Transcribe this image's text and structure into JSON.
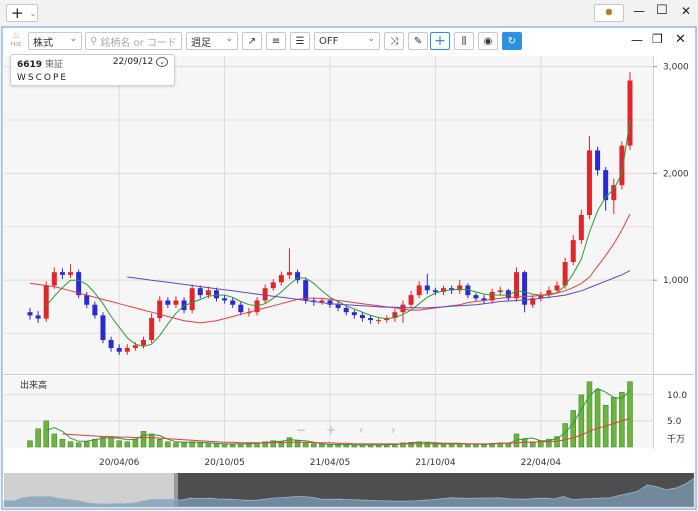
{
  "app": {
    "new_button": "+"
  },
  "toolbar": {
    "hot": "Hot",
    "market_type": "株式",
    "search_placeholder": "銘柄名 or コード",
    "period": "週足",
    "overlay": "OFF"
  },
  "info": {
    "code": "6619",
    "exchange": "東証",
    "date": "22/09/12",
    "name": "WSCOPE"
  },
  "chart_data": {
    "type": "candlestick",
    "categories": [
      null,
      null,
      null,
      null,
      null,
      null,
      null,
      null,
      null,
      null,
      null,
      "20/04/06",
      null,
      null,
      null,
      null,
      null,
      null,
      null,
      null,
      null,
      null,
      null,
      null,
      "20/10/05",
      null,
      null,
      null,
      null,
      null,
      null,
      null,
      null,
      null,
      null,
      null,
      null,
      "21/04/05",
      null,
      null,
      null,
      null,
      null,
      null,
      null,
      null,
      null,
      null,
      null,
      null,
      "21/10/04",
      null,
      null,
      null,
      null,
      null,
      null,
      null,
      null,
      null,
      null,
      null,
      null,
      "22/04/04",
      null,
      null,
      null,
      null,
      null,
      null,
      null,
      null,
      null,
      null,
      null
    ],
    "open": [
      700,
      670,
      640,
      950,
      1075,
      1050,
      1075,
      860,
      770,
      670,
      440,
      365,
      330,
      365,
      390,
      440,
      645,
      810,
      770,
      810,
      720,
      925,
      860,
      905,
      830,
      810,
      770,
      700,
      700,
      810,
      925,
      980,
      1047,
      1075,
      1000,
      810,
      795,
      810,
      770,
      740,
      700,
      673,
      645,
      626,
      626,
      645,
      700,
      770,
      860,
      950,
      905,
      890,
      925,
      905,
      950,
      860,
      830,
      810,
      890,
      905,
      830,
      1075,
      770,
      830,
      860,
      905,
      950,
      1170,
      1375,
      1610,
      2215,
      2030,
      1750,
      1890,
      2260
    ],
    "high": [
      740,
      710,
      990,
      1120,
      1110,
      1150,
      1100,
      890,
      800,
      700,
      470,
      400,
      400,
      420,
      470,
      690,
      850,
      840,
      850,
      840,
      960,
      950,
      940,
      930,
      860,
      840,
      800,
      740,
      840,
      960,
      1010,
      1080,
      1300,
      1100,
      1020,
      840,
      830,
      830,
      800,
      760,
      720,
      700,
      670,
      650,
      670,
      730,
      810,
      900,
      990,
      1060,
      930,
      950,
      950,
      1000,
      970,
      880,
      860,
      920,
      940,
      920,
      1120,
      1090,
      860,
      890,
      940,
      990,
      1210,
      1420,
      1660,
      2350,
      2250,
      2060,
      1950,
      2300,
      2950
    ],
    "low": [
      630,
      600,
      610,
      920,
      1010,
      1020,
      830,
      740,
      640,
      410,
      330,
      300,
      300,
      340,
      360,
      410,
      610,
      740,
      740,
      690,
      690,
      830,
      830,
      800,
      780,
      740,
      670,
      660,
      670,
      780,
      900,
      950,
      1010,
      970,
      780,
      760,
      770,
      740,
      710,
      670,
      640,
      610,
      590,
      590,
      600,
      610,
      600,
      740,
      830,
      870,
      860,
      860,
      870,
      870,
      830,
      800,
      780,
      780,
      860,
      800,
      800,
      700,
      740,
      800,
      830,
      880,
      920,
      1140,
      1340,
      1570,
      1980,
      1650,
      1620,
      1850,
      2220
    ],
    "close": [
      670,
      640,
      950,
      1075,
      1050,
      1075,
      860,
      770,
      670,
      440,
      365,
      330,
      365,
      390,
      440,
      645,
      810,
      770,
      810,
      720,
      925,
      860,
      905,
      830,
      810,
      770,
      700,
      700,
      810,
      925,
      980,
      1047,
      1075,
      1000,
      810,
      795,
      810,
      770,
      740,
      700,
      673,
      645,
      626,
      626,
      645,
      700,
      770,
      860,
      950,
      905,
      890,
      925,
      905,
      950,
      860,
      830,
      810,
      890,
      905,
      830,
      1075,
      770,
      830,
      860,
      905,
      950,
      1170,
      1375,
      1610,
      2215,
      2030,
      1750,
      1890,
      2260,
      2870
    ],
    "up_color": "#e0262a",
    "down_color": "#2a2ad0",
    "ma": [
      {
        "color": "#2e9a3a",
        "values": [
          null,
          null,
          760,
          850,
          930,
          1000,
          1000,
          960,
          880,
          780,
          660,
          560,
          460,
          400,
          380,
          400,
          480,
          590,
          690,
          760,
          790,
          820,
          850,
          860,
          860,
          840,
          800,
          770,
          760,
          780,
          830,
          890,
          960,
          1020,
          1020,
          970,
          900,
          840,
          800,
          760,
          730,
          700,
          670,
          650,
          640,
          650,
          680,
          720,
          780,
          840,
          880,
          900,
          910,
          915,
          910,
          890,
          870,
          860,
          860,
          860,
          900,
          890,
          870,
          860,
          860,
          880,
          950,
          1060,
          1200,
          1450,
          1650,
          1780,
          1850,
          2000,
          2500
        ]
      },
      {
        "color": "#e04040",
        "values": [
          970,
          960,
          950,
          940,
          920,
          900,
          880,
          860,
          840,
          820,
          800,
          780,
          760,
          740,
          720,
          700,
          680,
          660,
          640,
          620,
          610,
          600,
          610,
          620,
          640,
          660,
          680,
          700,
          720,
          740,
          760,
          780,
          800,
          820,
          830,
          830,
          830,
          820,
          810,
          800,
          790,
          780,
          770,
          760,
          750,
          740,
          730,
          720,
          720,
          730,
          740,
          750,
          760,
          770,
          790,
          800,
          810,
          820,
          830,
          840,
          840,
          850,
          850,
          860,
          870,
          880,
          900,
          930,
          970,
          1030,
          1130,
          1230,
          1340,
          1470,
          1620
        ]
      },
      {
        "color": "#5a4ac8",
        "values": [
          null,
          null,
          null,
          null,
          null,
          null,
          null,
          null,
          null,
          null,
          null,
          null,
          1030,
          1020,
          1010,
          1000,
          990,
          980,
          970,
          960,
          950,
          940,
          930,
          920,
          910,
          900,
          890,
          880,
          870,
          860,
          850,
          840,
          830,
          820,
          810,
          800,
          790,
          780,
          775,
          770,
          765,
          760,
          755,
          750,
          748,
          746,
          744,
          742,
          740,
          740,
          745,
          750,
          755,
          760,
          765,
          770,
          780,
          790,
          800,
          805,
          810,
          815,
          820,
          830,
          840,
          850,
          860,
          880,
          900,
          930,
          960,
          990,
          1020,
          1050,
          1090
        ]
      }
    ],
    "ylim": [
      140,
      3090
    ],
    "yticks": [
      {
        "value": 3000,
        "label": "3,000"
      },
      {
        "value": 2000,
        "label": "2,000"
      },
      {
        "value": 1000,
        "label": "1,000"
      }
    ],
    "yminor": [
      500,
      1500,
      2500
    ],
    "grid": true,
    "volume": {
      "label": "出来高",
      "unit": "千万",
      "color": "#6db33f",
      "values": [
        1.2,
        3.5,
        5.0,
        2.5,
        1.5,
        1.0,
        0.8,
        1.0,
        1.5,
        2.0,
        1.8,
        1.2,
        1.0,
        1.5,
        3.0,
        2.5,
        1.5,
        1.0,
        0.8,
        0.8,
        1.0,
        0.8,
        0.8,
        0.6,
        0.6,
        0.5,
        0.6,
        0.7,
        0.8,
        1.0,
        1.2,
        1.0,
        1.8,
        1.2,
        0.8,
        0.6,
        0.5,
        0.5,
        0.5,
        0.4,
        0.4,
        0.4,
        0.4,
        0.4,
        0.5,
        0.6,
        0.8,
        0.9,
        1.0,
        0.8,
        0.7,
        0.7,
        0.6,
        0.7,
        0.6,
        0.5,
        0.5,
        0.7,
        0.8,
        0.6,
        2.5,
        1.5,
        1.0,
        1.2,
        1.5,
        2.0,
        4.5,
        7.0,
        10.0,
        12.5,
        11.0,
        8.0,
        9.5,
        10.5,
        12.5
      ],
      "ma": [
        {
          "color": "#2e9a3a",
          "values": [
            null,
            null,
            3.2,
            3.7,
            3.0,
            1.7,
            1.1,
            1.1,
            1.4,
            1.7,
            1.8,
            1.7,
            1.4,
            1.5,
            2.2,
            2.4,
            2.2,
            1.5,
            1.0,
            0.9,
            0.9,
            0.9,
            0.8,
            0.7,
            0.6,
            0.6,
            0.6,
            0.6,
            0.7,
            0.8,
            1.0,
            1.1,
            1.4,
            1.3,
            1.2,
            0.9,
            0.6,
            0.5,
            0.5,
            0.5,
            0.4,
            0.4,
            0.4,
            0.4,
            0.4,
            0.5,
            0.6,
            0.8,
            0.9,
            0.9,
            0.8,
            0.7,
            0.7,
            0.7,
            0.6,
            0.6,
            0.5,
            0.6,
            0.7,
            0.7,
            1.3,
            1.6,
            1.7,
            1.2,
            1.2,
            1.6,
            2.7,
            4.5,
            7.2,
            9.8,
            11.2,
            10.5,
            9.5,
            9.3,
            10.8
          ]
        },
        {
          "color": "#e04040",
          "values": [
            null,
            null,
            null,
            null,
            2.5,
            2.4,
            2.3,
            2.2,
            2.1,
            2.0,
            2.0,
            1.9,
            1.9,
            1.8,
            1.8,
            1.8,
            1.7,
            1.6,
            1.5,
            1.4,
            1.3,
            1.2,
            1.1,
            1.0,
            0.9,
            0.9,
            0.8,
            0.8,
            0.8,
            0.8,
            0.8,
            0.8,
            0.9,
            0.9,
            0.9,
            0.8,
            0.8,
            0.8,
            0.7,
            0.7,
            0.6,
            0.6,
            0.6,
            0.6,
            0.6,
            0.6,
            0.6,
            0.6,
            0.6,
            0.6,
            0.6,
            0.6,
            0.6,
            0.6,
            0.6,
            0.6,
            0.6,
            0.6,
            0.7,
            0.7,
            0.8,
            0.9,
            0.9,
            1.0,
            1.0,
            1.1,
            1.4,
            1.8,
            2.3,
            3.0,
            3.6,
            4.0,
            4.5,
            5.0,
            5.5
          ]
        }
      ],
      "ylim": [
        0,
        13.6
      ],
      "yticks": [
        {
          "value": 10,
          "label": "10.0"
        },
        {
          "value": 5,
          "label": "5.0"
        }
      ]
    }
  }
}
